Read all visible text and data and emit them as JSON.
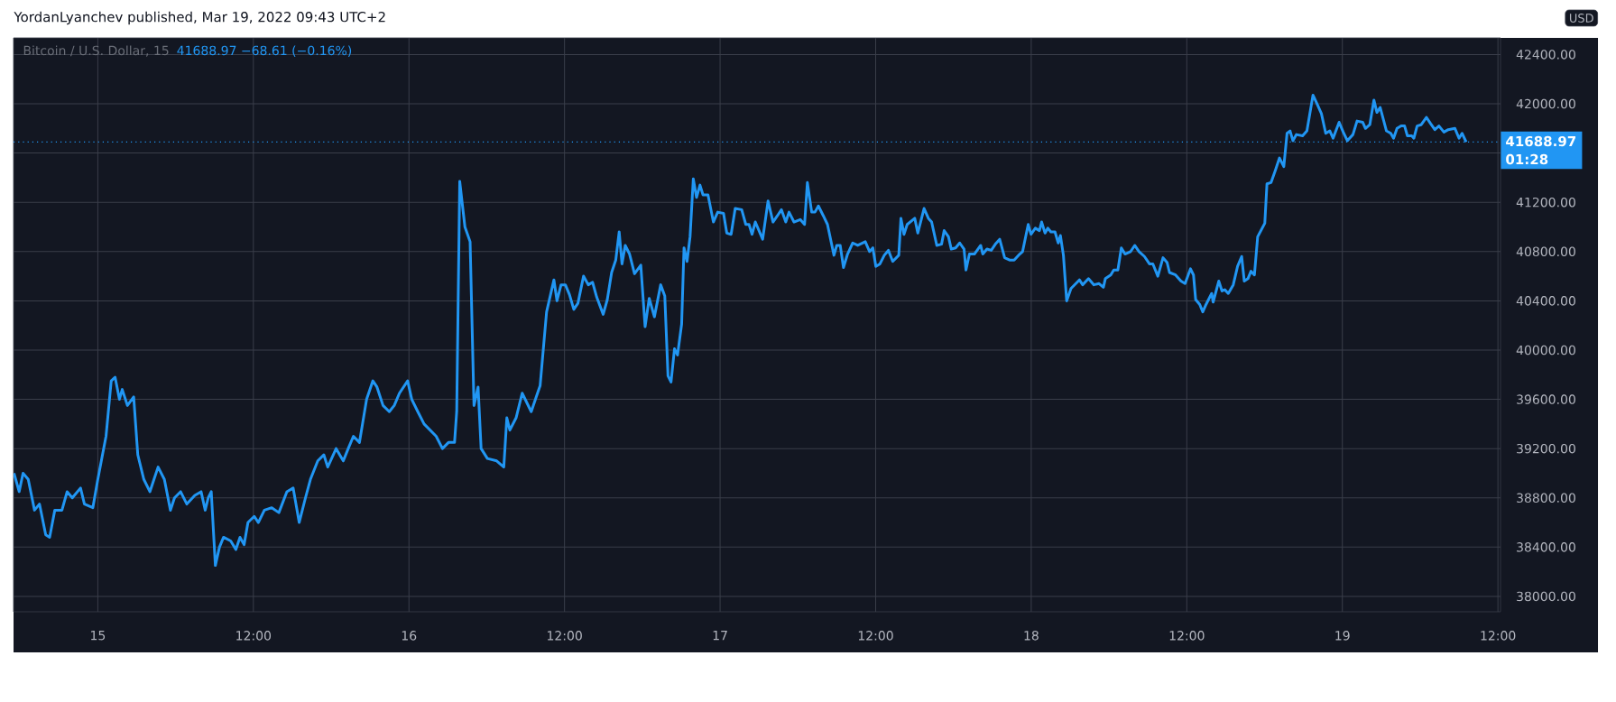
{
  "chart_data": {
    "type": "line",
    "title": "Bitcoin / U.S. Dollar, 15",
    "subtitle": "41688.97 −68.61 (−0.16%)",
    "annotations": [
      "YordanLyanchev published, Mar 19, 2022 09:43 UTC+2",
      "USD"
    ],
    "x": [
      "2022-03-14T17:32",
      "2022-03-14T17:56",
      "2022-03-14T18:14",
      "2022-03-14T18:38",
      "2022-03-14T19:07",
      "2022-03-14T19:30",
      "2022-03-14T19:59",
      "2022-03-14T20:17",
      "2022-03-14T20:41",
      "2022-03-14T21:14",
      "2022-03-14T21:38",
      "2022-03-14T22:02",
      "2022-03-14T22:40",
      "2022-03-14T22:58",
      "2022-03-14T23:37",
      "2022-03-15T00:00",
      "2022-03-15T00:38",
      "2022-03-15T01:02",
      "2022-03-15T01:20",
      "2022-03-15T01:40",
      "2022-03-15T01:53",
      "2022-03-15T02:17",
      "2022-03-15T02:46",
      "2022-03-15T03:05",
      "2022-03-15T03:33",
      "2022-03-15T04:01",
      "2022-03-15T04:20",
      "2022-03-15T04:39",
      "2022-03-15T05:08",
      "2022-03-15T05:36",
      "2022-03-15T05:55",
      "2022-03-15T06:23",
      "2022-03-15T06:52",
      "2022-03-15T07:29",
      "2022-03-15T07:58",
      "2022-03-15T08:17",
      "2022-03-15T08:31",
      "2022-03-15T08:45",
      "2022-03-15T09:04",
      "2022-03-15T09:23",
      "2022-03-15T09:42",
      "2022-03-15T10:15",
      "2022-03-15T10:39",
      "2022-03-15T10:58",
      "2022-03-15T11:17",
      "2022-03-15T11:35",
      "2022-03-15T12:04",
      "2022-03-15T12:23",
      "2022-03-15T12:51",
      "2022-03-15T13:25",
      "2022-03-15T13:58",
      "2022-03-15T14:35",
      "2022-03-15T15:04",
      "2022-03-15T15:32",
      "2022-03-15T16:01",
      "2022-03-15T16:24",
      "2022-03-15T16:58",
      "2022-03-15T17:26",
      "2022-03-15T17:44",
      "2022-03-15T18:23",
      "2022-03-15T18:56",
      "2022-03-15T19:19",
      "2022-03-15T19:43",
      "2022-03-15T20:11",
      "2022-03-15T20:44",
      "2022-03-15T21:13",
      "2022-03-15T21:32",
      "2022-03-15T22:00",
      "2022-03-15T22:29",
      "2022-03-15T22:52",
      "2022-03-15T23:16",
      "2022-03-15T23:54",
      "2022-03-16T00:13",
      "2022-03-16T00:41",
      "2022-03-16T01:10",
      "2022-03-16T01:38",
      "2022-03-16T02:06",
      "2022-03-16T02:35",
      "2022-03-16T03:03",
      "2022-03-16T03:31",
      "2022-03-16T03:41",
      "2022-03-16T03:55",
      "2022-03-16T04:19",
      "2022-03-16T04:43",
      "2022-03-16T05:01",
      "2022-03-16T05:20",
      "2022-03-16T05:34",
      "2022-03-16T06:03",
      "2022-03-16T06:46",
      "2022-03-16T07:19",
      "2022-03-16T07:33",
      "2022-03-16T07:47",
      "2022-03-16T08:16",
      "2022-03-16T08:44",
      "2022-03-16T09:26",
      "2022-03-16T09:55",
      "2022-03-16T10:07",
      "2022-03-16T10:37",
      "2022-03-16T11:11",
      "2022-03-16T11:25",
      "2022-03-16T11:44",
      "2022-03-16T12:04",
      "2022-03-16T12:23",
      "2022-03-16T12:43",
      "2022-03-16T13:02",
      "2022-03-16T13:28",
      "2022-03-16T13:50",
      "2022-03-16T14:10",
      "2022-03-16T14:29",
      "2022-03-16T14:59",
      "2022-03-16T15:18",
      "2022-03-16T15:38",
      "2022-03-16T15:57",
      "2022-03-16T16:13",
      "2022-03-16T16:26",
      "2022-03-16T16:41",
      "2022-03-16T17:01",
      "2022-03-16T17:24",
      "2022-03-16T17:53",
      "2022-03-16T18:13",
      "2022-03-16T18:32",
      "2022-03-16T18:56",
      "2022-03-16T19:25",
      "2022-03-16T19:44",
      "2022-03-16T19:59",
      "2022-03-16T20:13",
      "2022-03-16T20:29",
      "2022-03-16T20:43",
      "2022-03-16T21:02",
      "2022-03-16T21:13",
      "2022-03-16T21:27",
      "2022-03-16T21:41",
      "2022-03-16T21:56",
      "2022-03-16T22:11",
      "2022-03-16T22:27",
      "2022-03-16T22:41",
      "2022-03-16T23:04",
      "2022-03-16T23:29",
      "2022-03-16T23:49",
      "2022-03-17T00:16",
      "2022-03-17T00:31",
      "2022-03-17T00:51",
      "2022-03-17T01:10",
      "2022-03-17T01:40",
      "2022-03-17T01:59",
      "2022-03-17T02:14",
      "2022-03-17T02:28",
      "2022-03-17T02:43",
      "2022-03-17T03:17",
      "2022-03-17T03:42",
      "2022-03-17T04:05",
      "2022-03-17T04:25",
      "2022-03-17T04:44",
      "2022-03-17T05:04",
      "2022-03-17T05:19",
      "2022-03-17T05:42",
      "2022-03-17T06:11",
      "2022-03-17T06:31",
      "2022-03-17T06:44",
      "2022-03-17T07:04",
      "2022-03-17T07:19",
      "2022-03-17T07:35",
      "2022-03-17T07:58",
      "2022-03-17T08:17",
      "2022-03-17T08:47",
      "2022-03-17T09:00",
      "2022-03-17T09:16",
      "2022-03-17T09:31",
      "2022-03-17T09:50",
      "2022-03-17T10:14",
      "2022-03-17T10:37",
      "2022-03-17T11:12",
      "2022-03-17T11:32",
      "2022-03-17T11:47",
      "2022-03-17T12:01",
      "2022-03-17T12:20",
      "2022-03-17T12:40",
      "2022-03-17T12:59",
      "2022-03-17T13:19",
      "2022-03-17T13:47",
      "2022-03-17T13:57",
      "2022-03-17T14:11",
      "2022-03-17T14:26",
      "2022-03-17T15:01",
      "2022-03-17T15:15",
      "2022-03-17T15:44",
      "2022-03-17T16:04",
      "2022-03-17T16:19",
      "2022-03-17T16:43",
      "2022-03-17T17:05",
      "2022-03-17T17:17",
      "2022-03-17T17:37",
      "2022-03-17T17:50",
      "2022-03-17T18:10",
      "2022-03-17T18:29",
      "2022-03-17T18:49",
      "2022-03-17T18:58",
      "2022-03-17T19:14",
      "2022-03-17T19:37",
      "2022-03-17T20:06",
      "2022-03-17T20:16",
      "2022-03-17T20:35",
      "2022-03-17T20:55",
      "2022-03-17T21:14",
      "2022-03-17T21:34",
      "2022-03-17T21:57",
      "2022-03-17T22:22",
      "2022-03-17T22:41",
      "2022-03-17T23:07",
      "2022-03-17T23:20",
      "2022-03-17T23:46",
      "2022-03-17T23:59",
      "2022-03-18T00:19",
      "2022-03-18T00:38",
      "2022-03-18T00:48",
      "2022-03-18T01:04",
      "2022-03-18T01:17",
      "2022-03-18T01:31",
      "2022-03-18T01:50",
      "2022-03-18T02:05",
      "2022-03-18T02:15",
      "2022-03-18T02:29",
      "2022-03-18T02:44",
      "2022-03-18T03:04",
      "2022-03-18T03:43",
      "2022-03-18T03:58",
      "2022-03-18T04:25",
      "2022-03-18T04:50",
      "2022-03-18T05:14",
      "2022-03-18T05:34",
      "2022-03-18T05:43",
      "2022-03-18T06:08",
      "2022-03-18T06:22",
      "2022-03-18T06:41",
      "2022-03-18T06:57",
      "2022-03-18T07:14",
      "2022-03-18T07:40",
      "2022-03-18T07:59",
      "2022-03-18T08:19",
      "2022-03-18T08:44",
      "2022-03-18T09:07",
      "2022-03-18T09:23",
      "2022-03-18T09:46",
      "2022-03-18T10:10",
      "2022-03-18T10:29",
      "2022-03-18T10:40",
      "2022-03-18T11:08",
      "2022-03-18T11:33",
      "2022-03-18T11:52",
      "2022-03-18T12:17",
      "2022-03-18T12:31",
      "2022-03-18T12:41",
      "2022-03-18T13:00",
      "2022-03-18T13:14",
      "2022-03-18T13:29",
      "2022-03-18T13:55",
      "2022-03-18T14:02",
      "2022-03-18T14:28",
      "2022-03-18T14:43",
      "2022-03-18T14:56",
      "2022-03-18T15:12",
      "2022-03-18T15:35",
      "2022-03-18T15:55",
      "2022-03-18T16:14",
      "2022-03-18T16:26",
      "2022-03-18T16:43",
      "2022-03-18T16:57",
      "2022-03-18T17:13",
      "2022-03-18T17:28",
      "2022-03-18T18:01",
      "2022-03-18T18:11",
      "2022-03-18T18:30",
      "2022-03-18T18:50",
      "2022-03-18T19:09",
      "2022-03-18T19:29",
      "2022-03-18T19:44",
      "2022-03-18T19:58",
      "2022-03-18T20:11",
      "2022-03-18T20:27",
      "2022-03-18T20:56",
      "2022-03-18T21:16",
      "2022-03-18T21:44",
      "2022-03-18T22:00",
      "2022-03-18T22:23",
      "2022-03-18T22:43",
      "2022-03-18T23:02",
      "2022-03-18T23:17",
      "2022-03-18T23:45",
      "2022-03-19T00:04",
      "2022-03-19T00:23",
      "2022-03-19T00:49",
      "2022-03-19T01:08",
      "2022-03-19T01:34",
      "2022-03-19T01:47",
      "2022-03-19T02:07",
      "2022-03-19T02:26",
      "2022-03-19T02:40",
      "2022-03-19T02:55",
      "2022-03-19T03:24",
      "2022-03-19T03:44",
      "2022-03-19T03:57",
      "2022-03-19T04:13",
      "2022-03-19T04:32",
      "2022-03-19T04:48",
      "2022-03-19T05:01",
      "2022-03-19T05:21",
      "2022-03-19T05:31",
      "2022-03-19T05:46",
      "2022-03-19T06:05",
      "2022-03-19T06:29",
      "2022-03-19T06:48",
      "2022-03-19T07:08",
      "2022-03-19T07:27",
      "2022-03-19T07:50",
      "2022-03-19T08:10",
      "2022-03-19T08:41",
      "2022-03-19T09:00",
      "2022-03-19T09:14",
      "2022-03-19T09:33"
    ],
    "series": [
      {
        "color": "#2196f3",
        "values": [
          39000,
          38850,
          39000,
          38950,
          38700,
          38750,
          38500,
          38480,
          38700,
          38700,
          38850,
          38800,
          38880,
          38750,
          38720,
          38950,
          39300,
          39750,
          39780,
          39600,
          39680,
          39550,
          39620,
          39150,
          38950,
          38850,
          38950,
          39050,
          38950,
          38700,
          38800,
          38850,
          38750,
          38820,
          38850,
          38700,
          38800,
          38850,
          38250,
          38400,
          38480,
          38450,
          38380,
          38480,
          38420,
          38600,
          38650,
          38600,
          38700,
          38720,
          38680,
          38850,
          38880,
          38600,
          38800,
          38950,
          39100,
          39150,
          39050,
          39200,
          39100,
          39200,
          39300,
          39250,
          39600,
          39750,
          39700,
          39550,
          39500,
          39550,
          39650,
          39750,
          39600,
          39500,
          39400,
          39350,
          39300,
          39200,
          39250,
          39250,
          39500,
          41370,
          41000,
          40880,
          39550,
          39700,
          39200,
          39120,
          39100,
          39050,
          39450,
          39350,
          39450,
          39650,
          39500,
          39650,
          39710,
          40310,
          40570,
          40400,
          40530,
          40530,
          40450,
          40330,
          40380,
          40600,
          40530,
          40550,
          40430,
          40290,
          40410,
          40630,
          40730,
          40960,
          40700,
          40850,
          40780,
          40620,
          40690,
          40190,
          40420,
          40270,
          40530,
          40440,
          39790,
          39740,
          40010,
          39960,
          40210,
          40830,
          40720,
          40920,
          41390,
          41240,
          41340,
          41260,
          41260,
          41040,
          41120,
          41110,
          40950,
          40940,
          41150,
          41140,
          41020,
          41020,
          40940,
          41040,
          40900,
          41210,
          41040,
          41090,
          41140,
          41040,
          41120,
          41040,
          41060,
          41020,
          41360,
          41120,
          41120,
          41170,
          41090,
          41020,
          40770,
          40850,
          40850,
          40670,
          40780,
          40870,
          40850,
          40880,
          40800,
          40830,
          40680,
          40700,
          40770,
          40810,
          40720,
          40770,
          41070,
          40940,
          41020,
          41070,
          40950,
          41150,
          41070,
          41040,
          40850,
          40860,
          40970,
          40920,
          40820,
          40830,
          40870,
          40820,
          40650,
          40780,
          40780,
          40850,
          40780,
          40820,
          40810,
          40860,
          40900,
          40750,
          40730,
          40730,
          40780,
          40800,
          41020,
          40940,
          40990,
          40970,
          41040,
          40950,
          40990,
          40960,
          40960,
          40870,
          40930,
          40770,
          40400,
          40500,
          40570,
          40530,
          40580,
          40530,
          40540,
          40510,
          40580,
          40610,
          40650,
          40650,
          40830,
          40780,
          40800,
          40850,
          40800,
          40760,
          40700,
          40700,
          40600,
          40750,
          40710,
          40630,
          40610,
          40560,
          40540,
          40660,
          40610,
          40410,
          40370,
          40310,
          40370,
          40460,
          40390,
          40560,
          40480,
          40490,
          40460,
          40530,
          40680,
          40760,
          40560,
          40580,
          40640,
          40610,
          40920,
          41030,
          41350,
          41360,
          41460,
          41560,
          41490,
          41760,
          41780,
          41700,
          41750,
          41740,
          41780,
          42070,
          42010,
          41920,
          41760,
          41780,
          41720,
          41850,
          41770,
          41700,
          41750,
          41860,
          41850,
          41800,
          41830,
          42030,
          41930,
          41970,
          41780,
          41760,
          41720,
          41800,
          41820,
          41820,
          41740,
          41740,
          41720,
          41820,
          41830,
          41890,
          41840,
          41790,
          41820,
          41770,
          41790,
          41800,
          41720,
          41760,
          41690
        ]
      }
    ],
    "xlim": [
      "2022-03-14T17:30",
      "2022-03-19T12:12"
    ],
    "ylim": [
      37875,
      42535
    ],
    "xticks": [
      {
        "value": "2022-03-15T00:00",
        "label": "15"
      },
      {
        "value": "2022-03-15T12:00",
        "label": "12:00"
      },
      {
        "value": "2022-03-16T00:00",
        "label": "16"
      },
      {
        "value": "2022-03-16T12:00",
        "label": "12:00"
      },
      {
        "value": "2022-03-17T00:00",
        "label": "17"
      },
      {
        "value": "2022-03-17T12:00",
        "label": "12:00"
      },
      {
        "value": "2022-03-18T00:00",
        "label": "18"
      },
      {
        "value": "2022-03-18T12:00",
        "label": "12:00"
      },
      {
        "value": "2022-03-19T00:00",
        "label": "19"
      },
      {
        "value": "2022-03-19T12:00",
        "label": "12:00"
      }
    ],
    "yticks": [
      {
        "value": 38000,
        "label": "38000.00"
      },
      {
        "value": 38400,
        "label": "38400.00"
      },
      {
        "value": 38800,
        "label": "38800.00"
      },
      {
        "value": 39200,
        "label": "39200.00"
      },
      {
        "value": 39600,
        "label": "39600.00"
      },
      {
        "value": 40000,
        "label": "40000.00"
      },
      {
        "value": 40400,
        "label": "40400.00"
      },
      {
        "value": 40800,
        "label": "40800.00"
      },
      {
        "value": 41200,
        "label": "41200.00"
      },
      {
        "value": 41600,
        "label": null
      },
      {
        "value": 42000,
        "label": "42000.00"
      },
      {
        "value": 42400,
        "label": "42400.00"
      }
    ],
    "grid": true,
    "ref_lines": [
      {
        "axis": "y",
        "value": 41688.97,
        "label": "41688.97 01:28",
        "color": "#2196f3",
        "line_style": "dotted"
      }
    ]
  }
}
